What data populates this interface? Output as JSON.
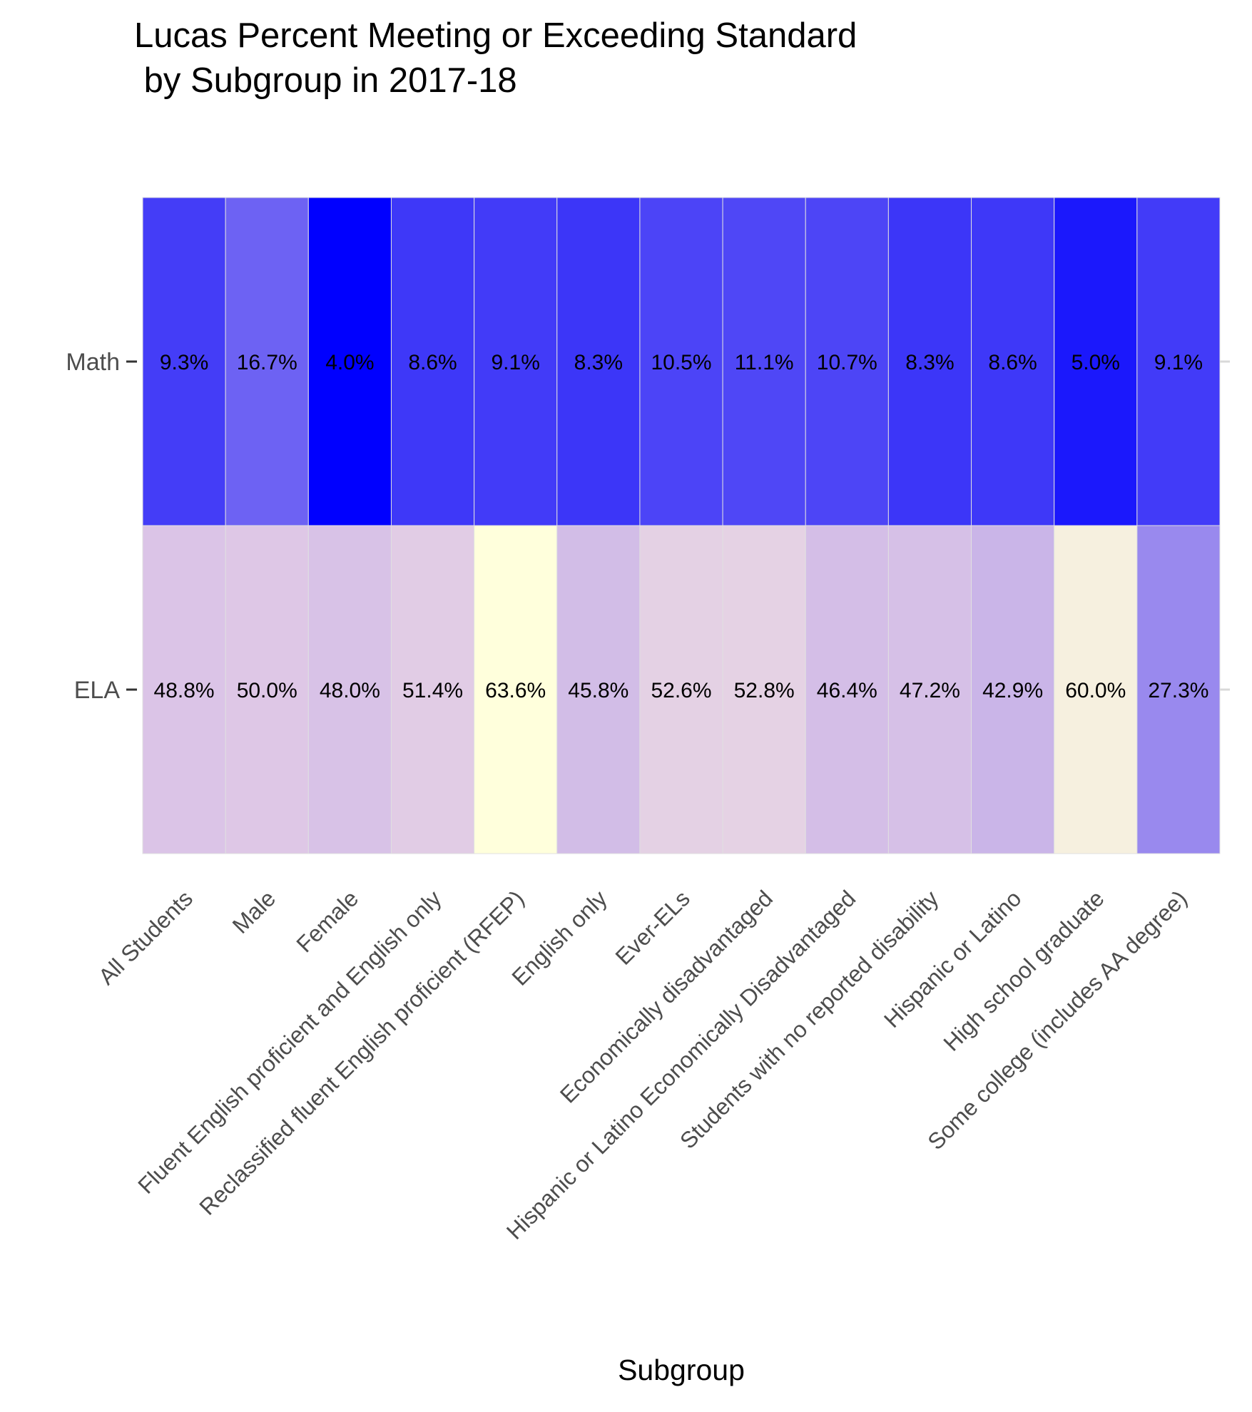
{
  "chart_data": {
    "type": "heatmap",
    "title": "Lucas Percent Meeting or Exceeding Standard\n by Subgroup in 2017-18",
    "xlabel": "Subgroup",
    "ylabel": "",
    "rows": [
      "ELA",
      "Math"
    ],
    "categories": [
      "All Students",
      "Male",
      "Female",
      "Fluent English proficient and English only",
      "Reclassified fluent English proficient (RFEP)",
      "English only",
      "Ever-ELs",
      "Economically disadvantaged",
      "Hispanic or Latino Economically Disadvantaged",
      "Students with no reported disability",
      "Hispanic or Latino",
      "High school graduate",
      "Some college (includes AA degree)"
    ],
    "series": [
      {
        "name": "Math",
        "values": [
          9.3,
          16.7,
          4.0,
          8.6,
          9.1,
          8.3,
          10.5,
          11.1,
          10.7,
          8.3,
          8.6,
          5.0,
          9.1
        ],
        "labels": [
          "9.3%",
          "16.7%",
          "4.0%",
          "8.6%",
          "9.1%",
          "8.3%",
          "10.5%",
          "11.1%",
          "10.7%",
          "8.3%",
          "8.6%",
          "5.0%",
          "9.1%"
        ]
      },
      {
        "name": "ELA",
        "values": [
          48.8,
          50.0,
          48.0,
          51.4,
          63.6,
          45.8,
          52.6,
          52.8,
          46.4,
          47.2,
          42.9,
          60.0,
          27.3
        ],
        "labels": [
          "48.8%",
          "50.0%",
          "48.0%",
          "51.4%",
          "63.6%",
          "45.8%",
          "52.6%",
          "52.8%",
          "46.4%",
          "47.2%",
          "42.9%",
          "60.0%",
          "27.3%"
        ]
      }
    ],
    "color_scale": {
      "low": "#0000ff",
      "mid": "#dfc8e6",
      "high": "#ffffdc",
      "domain": [
        4.0,
        63.6
      ]
    },
    "value_range": [
      4.0,
      63.6
    ],
    "legend": "none",
    "grid": false,
    "tile_border_color": "#e0e0e0",
    "label_color": "#000000"
  }
}
